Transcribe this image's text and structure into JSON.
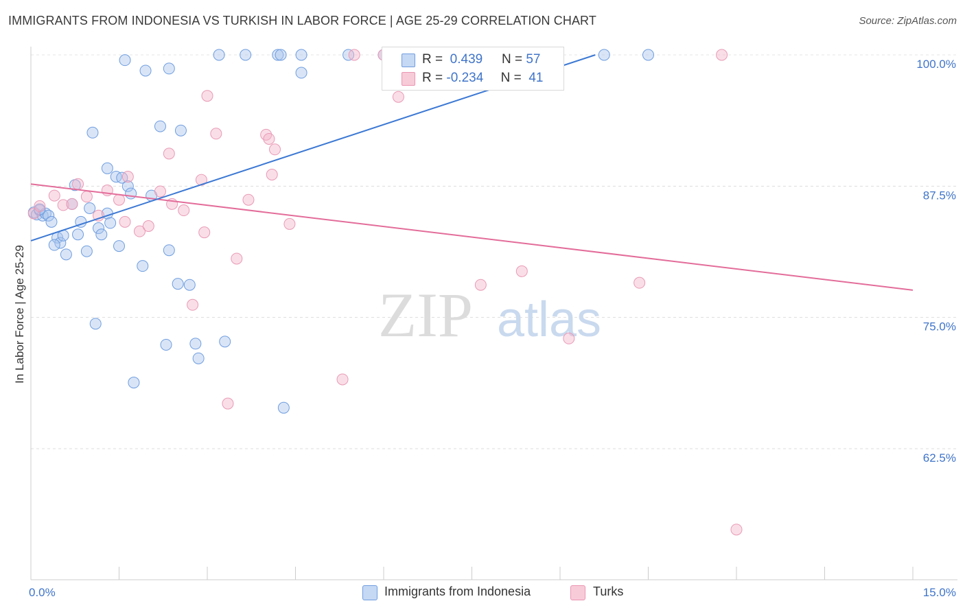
{
  "title": "IMMIGRANTS FROM INDONESIA VS TURKISH IN LABOR FORCE | AGE 25-29 CORRELATION CHART",
  "source": "Source: ZipAtlas.com",
  "watermark": {
    "zip": "ZIP",
    "atlas": "atlas"
  },
  "colors": {
    "blue": "#3b78d4",
    "blue_fill": "#aac6ee",
    "pink": "#e36c99",
    "pink_fill": "#f4b6c9",
    "axis_text": "#3f74c9",
    "grid": "#d8d8d8"
  },
  "legend": {
    "rows": [
      {
        "r_label": "R =",
        "r_value": "0.439",
        "n_label": "N =",
        "n_value": "57"
      },
      {
        "r_label": "R =",
        "r_value": "-0.234",
        "n_label": "N =",
        "n_value": "41"
      }
    ]
  },
  "bottom_legend": {
    "series1": "Immigrants from Indonesia",
    "series2": "Turks"
  },
  "chart_data": {
    "type": "scatter",
    "title": "IMMIGRANTS FROM INDONESIA VS TURKISH IN LABOR FORCE | AGE 25-29 CORRELATION CHART",
    "xlabel": "",
    "ylabel": "In Labor Force | Age 25-29",
    "xlim": [
      0,
      15
    ],
    "ylim": [
      50,
      101.5
    ],
    "x_tick_labels": [
      "0.0%",
      "15.0%"
    ],
    "y_ticks": [
      62.5,
      75,
      87.5,
      100
    ],
    "y_tick_labels": [
      "62.5%",
      "75.0%",
      "87.5%",
      "100.0%"
    ],
    "grid": true,
    "legend_position": "top-center",
    "series": [
      {
        "name": "Immigrants from Indonesia",
        "color": "#3b78d4",
        "R": 0.439,
        "N": 57,
        "trend": {
          "x": [
            0,
            9.6
          ],
          "y": [
            82.3,
            100.0
          ]
        },
        "points": [
          [
            0.05,
            85.0
          ],
          [
            0.1,
            84.8
          ],
          [
            0.15,
            85.2
          ],
          [
            0.2,
            84.7
          ],
          [
            0.25,
            84.9
          ],
          [
            0.3,
            84.7
          ],
          [
            0.35,
            84.1
          ],
          [
            0.45,
            82.6
          ],
          [
            0.5,
            82.1
          ],
          [
            0.55,
            82.8
          ],
          [
            0.6,
            81.0
          ],
          [
            0.7,
            85.8
          ],
          [
            0.8,
            82.9
          ],
          [
            0.85,
            84.1
          ],
          [
            0.95,
            81.3
          ],
          [
            0.4,
            81.9
          ],
          [
            0.75,
            87.6
          ],
          [
            1.0,
            85.4
          ],
          [
            1.05,
            92.6
          ],
          [
            1.15,
            83.5
          ],
          [
            1.2,
            82.9
          ],
          [
            1.3,
            84.9
          ],
          [
            1.35,
            84.0
          ],
          [
            1.3,
            89.2
          ],
          [
            1.45,
            88.4
          ],
          [
            1.5,
            81.8
          ],
          [
            1.55,
            88.3
          ],
          [
            1.65,
            87.5
          ],
          [
            1.7,
            86.8
          ],
          [
            1.6,
            99.5
          ],
          [
            1.9,
            79.9
          ],
          [
            1.95,
            98.5
          ],
          [
            2.05,
            86.6
          ],
          [
            2.2,
            93.2
          ],
          [
            2.3,
            72.4
          ],
          [
            2.35,
            81.4
          ],
          [
            2.35,
            98.7
          ],
          [
            2.5,
            78.2
          ],
          [
            2.55,
            92.8
          ],
          [
            2.7,
            78.1
          ],
          [
            2.8,
            72.5
          ],
          [
            2.85,
            71.1
          ],
          [
            3.2,
            100.0
          ],
          [
            3.3,
            72.7
          ],
          [
            1.75,
            68.8
          ],
          [
            1.1,
            74.4
          ],
          [
            3.65,
            100.0
          ],
          [
            4.6,
            100.0
          ],
          [
            4.6,
            98.3
          ],
          [
            4.2,
            100.0
          ],
          [
            4.3,
            66.4
          ],
          [
            5.4,
            100.0
          ],
          [
            6.0,
            100.0
          ],
          [
            9.75,
            100.0
          ],
          [
            10.5,
            100.0
          ],
          [
            4.25,
            100.0
          ],
          [
            0.15,
            85.3
          ]
        ]
      },
      {
        "name": "Turks",
        "color": "#e36c99",
        "R": -0.234,
        "N": 41,
        "trend": {
          "x": [
            0,
            15
          ],
          "y": [
            87.7,
            77.6
          ]
        },
        "points": [
          [
            0.05,
            84.9
          ],
          [
            0.15,
            85.6
          ],
          [
            0.4,
            86.6
          ],
          [
            0.55,
            85.7
          ],
          [
            0.7,
            85.8
          ],
          [
            0.8,
            87.7
          ],
          [
            0.95,
            86.5
          ],
          [
            1.15,
            84.7
          ],
          [
            1.3,
            87.1
          ],
          [
            1.5,
            86.2
          ],
          [
            1.6,
            84.1
          ],
          [
            1.65,
            88.4
          ],
          [
            1.85,
            83.2
          ],
          [
            2.0,
            83.7
          ],
          [
            2.2,
            87.0
          ],
          [
            2.35,
            90.6
          ],
          [
            2.4,
            85.8
          ],
          [
            2.6,
            85.2
          ],
          [
            2.75,
            76.2
          ],
          [
            2.9,
            88.1
          ],
          [
            2.95,
            83.1
          ],
          [
            3.0,
            96.1
          ],
          [
            3.15,
            92.5
          ],
          [
            3.35,
            66.8
          ],
          [
            3.5,
            80.6
          ],
          [
            3.7,
            86.2
          ],
          [
            4.0,
            92.4
          ],
          [
            4.05,
            92.0
          ],
          [
            4.1,
            88.6
          ],
          [
            4.15,
            91.0
          ],
          [
            4.4,
            83.9
          ],
          [
            5.3,
            69.1
          ],
          [
            5.5,
            100.0
          ],
          [
            6.25,
            96.0
          ],
          [
            7.65,
            78.1
          ],
          [
            8.35,
            79.4
          ],
          [
            9.15,
            73.0
          ],
          [
            10.35,
            78.3
          ],
          [
            11.75,
            100.0
          ],
          [
            12.0,
            54.8
          ],
          [
            6.0,
            100.0
          ]
        ]
      }
    ]
  }
}
